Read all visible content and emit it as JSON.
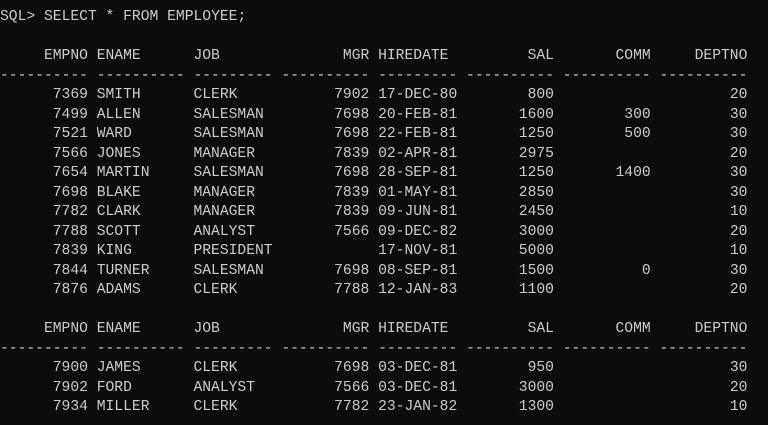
{
  "command": "SQL> SELECT * FROM EMPLOYEE;",
  "columns": [
    {
      "name": "EMPNO",
      "width": 10,
      "align": "r"
    },
    {
      "name": "ENAME",
      "width": 10,
      "align": "l"
    },
    {
      "name": "JOB",
      "width": 9,
      "align": "l"
    },
    {
      "name": "MGR",
      "width": 10,
      "align": "r"
    },
    {
      "name": "HIREDATE",
      "width": 9,
      "align": "l"
    },
    {
      "name": "SAL",
      "width": 10,
      "align": "r"
    },
    {
      "name": "COMM",
      "width": 10,
      "align": "r"
    },
    {
      "name": "DEPTNO",
      "width": 10,
      "align": "r"
    }
  ],
  "pages": [
    [
      [
        "7369",
        "SMITH",
        "CLERK",
        "7902",
        "17-DEC-80",
        "800",
        "",
        "20"
      ],
      [
        "7499",
        "ALLEN",
        "SALESMAN",
        "7698",
        "20-FEB-81",
        "1600",
        "300",
        "30"
      ],
      [
        "7521",
        "WARD",
        "SALESMAN",
        "7698",
        "22-FEB-81",
        "1250",
        "500",
        "30"
      ],
      [
        "7566",
        "JONES",
        "MANAGER",
        "7839",
        "02-APR-81",
        "2975",
        "",
        "20"
      ],
      [
        "7654",
        "MARTIN",
        "SALESMAN",
        "7698",
        "28-SEP-81",
        "1250",
        "1400",
        "30"
      ],
      [
        "7698",
        "BLAKE",
        "MANAGER",
        "7839",
        "01-MAY-81",
        "2850",
        "",
        "30"
      ],
      [
        "7782",
        "CLARK",
        "MANAGER",
        "7839",
        "09-JUN-81",
        "2450",
        "",
        "10"
      ],
      [
        "7788",
        "SCOTT",
        "ANALYST",
        "7566",
        "09-DEC-82",
        "3000",
        "",
        "20"
      ],
      [
        "7839",
        "KING",
        "PRESIDENT",
        "",
        "17-NOV-81",
        "5000",
        "",
        "10"
      ],
      [
        "7844",
        "TURNER",
        "SALESMAN",
        "7698",
        "08-SEP-81",
        "1500",
        "0",
        "30"
      ],
      [
        "7876",
        "ADAMS",
        "CLERK",
        "7788",
        "12-JAN-83",
        "1100",
        "",
        "20"
      ]
    ],
    [
      [
        "7900",
        "JAMES",
        "CLERK",
        "7698",
        "03-DEC-81",
        "950",
        "",
        "30"
      ],
      [
        "7902",
        "FORD",
        "ANALYST",
        "7566",
        "03-DEC-81",
        "3000",
        "",
        "20"
      ],
      [
        "7934",
        "MILLER",
        "CLERK",
        "7782",
        "23-JAN-82",
        "1300",
        "",
        "10"
      ]
    ]
  ]
}
